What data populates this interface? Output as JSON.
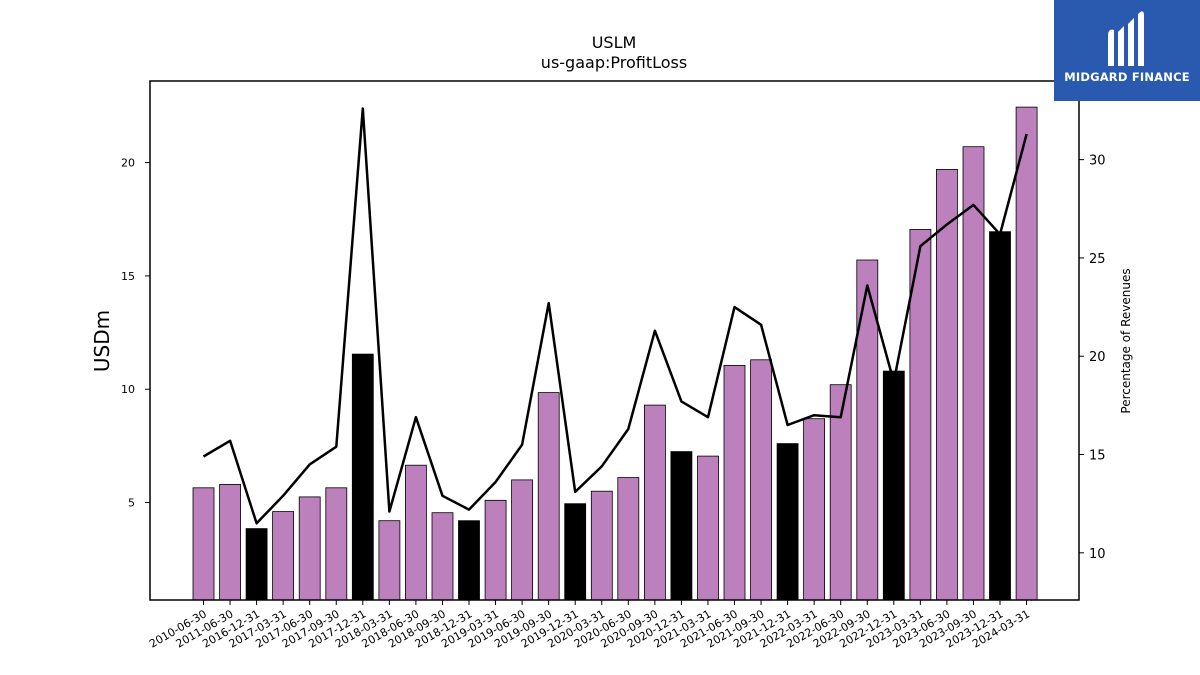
{
  "chart_data": {
    "type": "bar",
    "title": "USLM",
    "subtitle": "us-gaap:ProfitLoss",
    "ylabel": "USDm",
    "ylabel_right": "Percentage of Revenues",
    "ylim": [
      0.7,
      23.6
    ],
    "ylim_right": [
      7.6,
      34.0
    ],
    "yticks": [
      5,
      10,
      15,
      20
    ],
    "yticks_right": [
      10,
      15,
      20,
      25,
      30
    ],
    "grid": false,
    "categories": [
      "2010-06-30",
      "2011-06-30",
      "2016-12-31",
      "2017-03-31",
      "2017-06-30",
      "2017-09-30",
      "2017-12-31",
      "2018-03-31",
      "2018-06-30",
      "2018-09-30",
      "2018-12-31",
      "2019-03-31",
      "2019-06-30",
      "2019-09-30",
      "2019-12-31",
      "2020-03-31",
      "2020-06-30",
      "2020-09-30",
      "2020-12-31",
      "2021-03-31",
      "2021-06-30",
      "2021-09-30",
      "2021-12-31",
      "2022-03-31",
      "2022-06-30",
      "2022-09-30",
      "2022-12-31",
      "2023-03-31",
      "2023-06-30",
      "2023-09-30",
      "2023-12-31",
      "2024-03-31"
    ],
    "series": [
      {
        "kind": "bar",
        "axis": "left",
        "values": [
          5.65,
          5.8,
          3.85,
          4.6,
          5.25,
          5.65,
          11.55,
          4.2,
          6.65,
          4.55,
          4.2,
          5.1,
          6.0,
          9.85,
          4.95,
          5.5,
          6.1,
          9.3,
          7.25,
          7.05,
          11.05,
          11.3,
          7.6,
          8.7,
          10.2,
          15.7,
          10.8,
          17.05,
          19.7,
          20.7,
          16.95,
          22.45
        ],
        "highlight": [
          false,
          false,
          true,
          false,
          false,
          false,
          true,
          false,
          false,
          false,
          true,
          false,
          false,
          false,
          true,
          false,
          false,
          false,
          true,
          false,
          false,
          false,
          true,
          false,
          false,
          false,
          true,
          false,
          false,
          false,
          true,
          false
        ]
      },
      {
        "kind": "line",
        "axis": "right",
        "values": [
          14.9,
          15.7,
          11.5,
          12.9,
          14.5,
          15.4,
          32.6,
          12.1,
          16.9,
          12.9,
          12.2,
          13.6,
          15.5,
          22.7,
          13.1,
          14.4,
          16.3,
          21.3,
          17.7,
          16.9,
          22.5,
          21.6,
          16.5,
          17.0,
          16.9,
          23.6,
          18.7,
          25.6,
          26.7,
          27.7,
          26.2,
          31.3
        ]
      }
    ],
    "colors": {
      "bar": "#bc80bd",
      "highlight": "#000000",
      "line": "#000000"
    }
  },
  "logo": {
    "text": "MIDGARD FINANCE",
    "background": "#2a5ab0"
  }
}
